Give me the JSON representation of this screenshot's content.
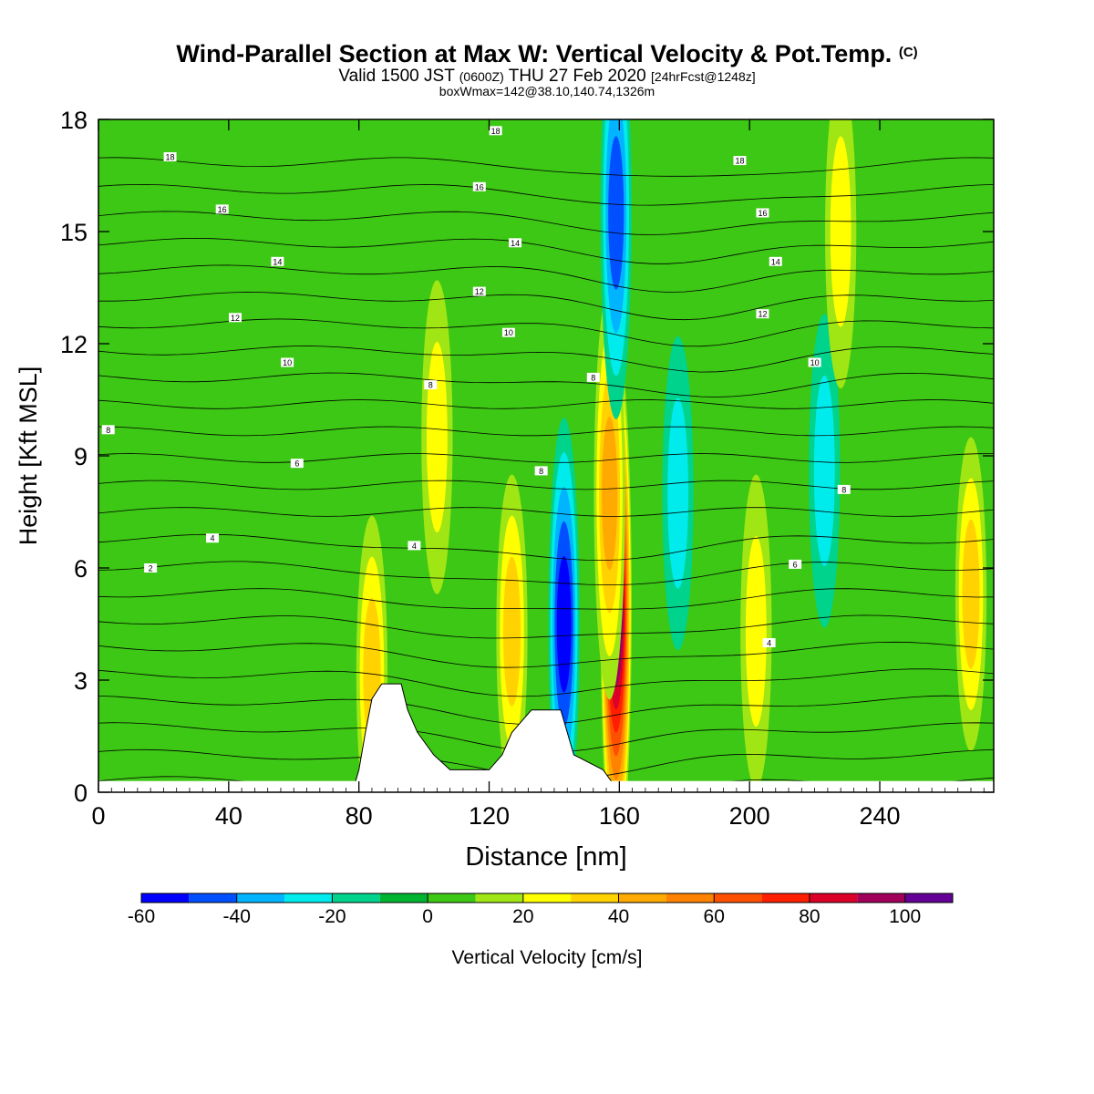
{
  "title": {
    "main": "Wind-Parallel Section at Max W: Vertical Velocity & Pot.Temp.",
    "copyright": "(C)",
    "valid_a": "Valid 1500 JST",
    "valid_z": "(0600Z)",
    "valid_b": "THU 27 Feb 2020",
    "valid_fcst": "[24hrFcst@1248z]",
    "box": "boxWmax=142@38.10,140.74,1326m"
  },
  "colorbar": {
    "label": "Vertical Velocity [cm/s]",
    "ticks": [
      "-60",
      "-40",
      "-20",
      "0",
      "20",
      "40",
      "60",
      "80",
      "100"
    ],
    "colors": [
      "#0000ff",
      "#0050ff",
      "#00b4ff",
      "#00ecec",
      "#00d38c",
      "#00b432",
      "#3cc814",
      "#a0e614",
      "#ffff00",
      "#ffd200",
      "#ffaa00",
      "#ff8200",
      "#ff5000",
      "#ff1e00",
      "#dc0028",
      "#a0005a",
      "#640096"
    ]
  },
  "chart_data": {
    "type": "heatmap",
    "title": "Wind-Parallel Section at Max W: Vertical Velocity & Pot.Temp.",
    "xlabel": "Distance [nm]",
    "ylabel": "Height [Kft MSL]",
    "xlim": [
      0,
      275
    ],
    "ylim": [
      0,
      18
    ],
    "x_ticks": [
      "0",
      "40",
      "80",
      "120",
      "160",
      "200",
      "240"
    ],
    "y_ticks": [
      "0",
      "3",
      "6",
      "9",
      "12",
      "15",
      "18"
    ],
    "color_variable": "Vertical Velocity [cm/s]",
    "color_range": [
      -60,
      110
    ],
    "background_value": 0,
    "features": [
      {
        "x": 159,
        "y": 5,
        "value": 100
      },
      {
        "x": 157,
        "y": 8,
        "value": 40
      },
      {
        "x": 84,
        "y": 3.2,
        "value": 30
      },
      {
        "x": 127,
        "y": 4.3,
        "value": 30
      },
      {
        "x": 268,
        "y": 5.3,
        "value": 30
      },
      {
        "x": 223,
        "y": 8.6,
        "value": -20
      },
      {
        "x": 143,
        "y": 4.5,
        "value": -50
      },
      {
        "x": 159,
        "y": 15.5,
        "value": -40
      },
      {
        "x": 104,
        "y": 9.5,
        "value": 15
      },
      {
        "x": 202,
        "y": 4.3,
        "value": 15
      },
      {
        "x": 178,
        "y": 8,
        "value": -15
      },
      {
        "x": 228,
        "y": 15,
        "value": 15
      }
    ],
    "terrain": [
      {
        "x": 78,
        "h": 0
      },
      {
        "x": 80,
        "h": 0.6
      },
      {
        "x": 82,
        "h": 1.6
      },
      {
        "x": 84,
        "h": 2.5
      },
      {
        "x": 87,
        "h": 2.9
      },
      {
        "x": 93,
        "h": 2.9
      },
      {
        "x": 95,
        "h": 2.2
      },
      {
        "x": 98,
        "h": 1.6
      },
      {
        "x": 103,
        "h": 1.0
      },
      {
        "x": 108,
        "h": 0.6
      },
      {
        "x": 120,
        "h": 0.6
      },
      {
        "x": 124,
        "h": 1.0
      },
      {
        "x": 127,
        "h": 1.6
      },
      {
        "x": 133,
        "h": 2.2
      },
      {
        "x": 142,
        "h": 2.2
      },
      {
        "x": 146,
        "h": 1.0
      },
      {
        "x": 155,
        "h": 0.6
      },
      {
        "x": 160,
        "h": 0
      }
    ],
    "contour_variable": "Pot.Temp.",
    "contour_labels": [
      {
        "x": 22,
        "y": 17,
        "text": "18"
      },
      {
        "x": 38,
        "y": 15.6,
        "text": "16"
      },
      {
        "x": 55,
        "y": 14.2,
        "text": "14"
      },
      {
        "x": 42,
        "y": 12.7,
        "text": "12"
      },
      {
        "x": 58,
        "y": 11.5,
        "text": "10"
      },
      {
        "x": 102,
        "y": 10.9,
        "text": "8"
      },
      {
        "x": 3,
        "y": 9.7,
        "text": "8"
      },
      {
        "x": 61,
        "y": 8.8,
        "text": "6"
      },
      {
        "x": 35,
        "y": 6.8,
        "text": "4"
      },
      {
        "x": 16,
        "y": 6,
        "text": "2"
      },
      {
        "x": 97,
        "y": 6.6,
        "text": "4"
      },
      {
        "x": 122,
        "y": 17.7,
        "text": "18"
      },
      {
        "x": 117,
        "y": 16.2,
        "text": "16"
      },
      {
        "x": 128,
        "y": 14.7,
        "text": "14"
      },
      {
        "x": 117,
        "y": 13.4,
        "text": "12"
      },
      {
        "x": 126,
        "y": 12.3,
        "text": "10"
      },
      {
        "x": 152,
        "y": 11.1,
        "text": "8"
      },
      {
        "x": 136,
        "y": 8.6,
        "text": "8"
      },
      {
        "x": 197,
        "y": 16.9,
        "text": "18"
      },
      {
        "x": 204,
        "y": 15.5,
        "text": "16"
      },
      {
        "x": 208,
        "y": 14.2,
        "text": "14"
      },
      {
        "x": 204,
        "y": 12.8,
        "text": "12"
      },
      {
        "x": 220,
        "y": 11.5,
        "text": "10"
      },
      {
        "x": 229,
        "y": 8.1,
        "text": "8"
      },
      {
        "x": 214,
        "y": 6.1,
        "text": "6"
      },
      {
        "x": 206,
        "y": 4,
        "text": "4"
      }
    ]
  }
}
